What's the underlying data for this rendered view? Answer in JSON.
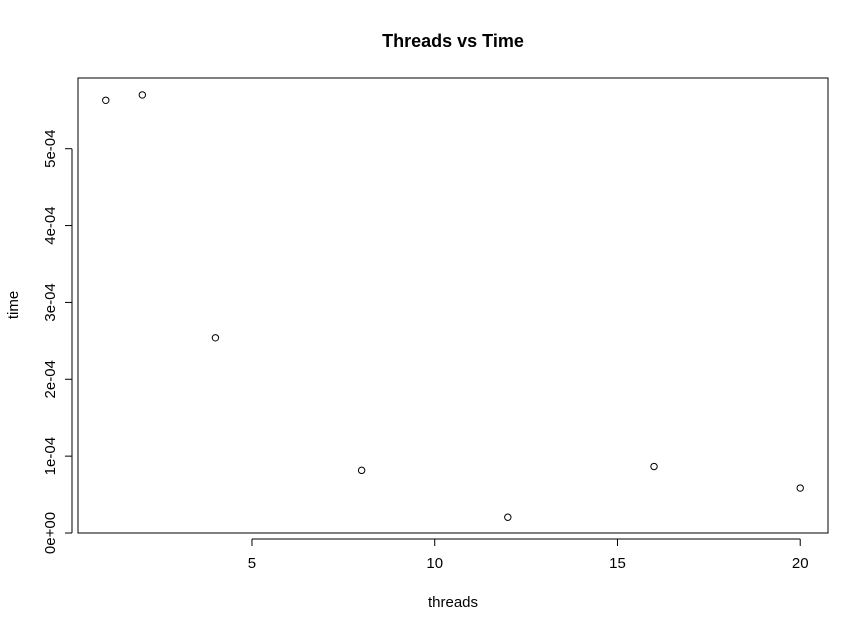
{
  "chart_data": {
    "type": "scatter",
    "title": "Threads vs Time",
    "xlabel": "threads",
    "ylabel": "time",
    "xlim": [
      0.24,
      20.76
    ],
    "ylim": [
      0,
      0.000592
    ],
    "xticks": [
      5,
      10,
      15,
      20
    ],
    "xtick_labels": [
      "5",
      "10",
      "15",
      "20"
    ],
    "yticks": [
      0,
      0.0001,
      0.0002,
      0.0003,
      0.0004,
      0.0005
    ],
    "ytick_labels": [
      "0e+00",
      "1e-04",
      "2e-04",
      "3e-04",
      "4e-04",
      "5e-04"
    ],
    "grid": false,
    "marker": "open-circle",
    "marker_color": "#000000",
    "points": [
      {
        "x": 1,
        "y": 0.000563
      },
      {
        "x": 2,
        "y": 0.00057
      },
      {
        "x": 4,
        "y": 0.000254
      },
      {
        "x": 8,
        "y": 8.15e-05
      },
      {
        "x": 12,
        "y": 2.05e-05
      },
      {
        "x": 16,
        "y": 8.65e-05
      },
      {
        "x": 20,
        "y": 5.85e-05
      }
    ]
  }
}
